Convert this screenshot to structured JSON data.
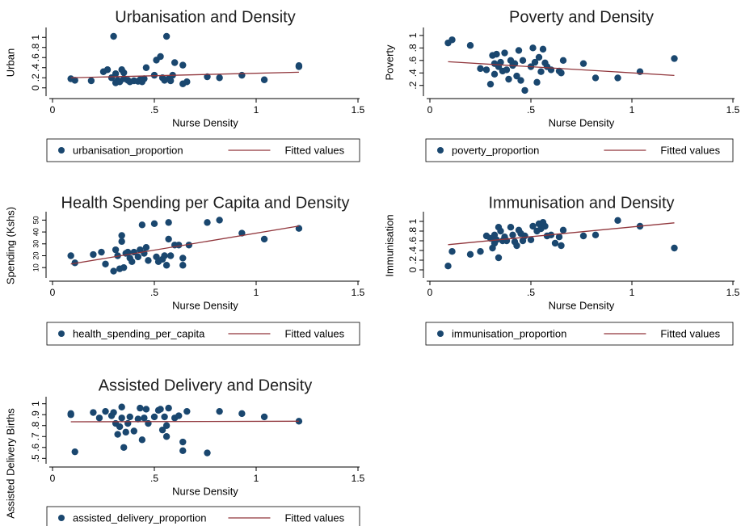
{
  "chart_data": [
    {
      "type": "scatter",
      "title": "Urbanisation and Density",
      "x_label": "Nurse Density",
      "y_label": "Urban",
      "xlim": [
        0,
        1.5
      ],
      "xticks": [
        0,
        {
          "value": 0.5,
          "label": ".5"
        },
        1,
        1.5
      ],
      "ylim": [
        -0.1,
        1.1
      ],
      "yticks": [
        0,
        {
          "value": 0.2,
          "label": ".2"
        },
        {
          "value": 0.4,
          "label": ".4"
        },
        {
          "value": 0.6,
          "label": ".6"
        },
        {
          "value": 0.8,
          "label": ".8"
        },
        1
      ],
      "series": [
        {
          "name": "urbanisation_proportion",
          "type": "scatter",
          "color": "#1a476f",
          "x": [
            0.09,
            0.11,
            0.19,
            0.25,
            0.27,
            0.29,
            0.3,
            0.31,
            0.31,
            0.32,
            0.33,
            0.34,
            0.35,
            0.35,
            0.37,
            0.38,
            0.4,
            0.42,
            0.43,
            0.44,
            0.45,
            0.46,
            0.5,
            0.51,
            0.53,
            0.54,
            0.55,
            0.56,
            0.57,
            0.58,
            0.59,
            0.6,
            0.64,
            0.64,
            0.66,
            0.76,
            0.82,
            0.93,
            1.04,
            1.21,
            1.21
          ],
          "values": [
            0.18,
            0.15,
            0.14,
            0.32,
            0.36,
            0.2,
            1.02,
            0.28,
            0.1,
            0.15,
            0.12,
            0.36,
            0.3,
            0.18,
            0.15,
            0.12,
            0.14,
            0.13,
            0.16,
            0.12,
            0.18,
            0.4,
            0.25,
            0.55,
            0.62,
            0.2,
            0.15,
            1.02,
            0.18,
            0.14,
            0.25,
            0.5,
            0.45,
            0.08,
            0.12,
            0.22,
            0.2,
            0.25,
            0.16,
            0.44,
            0.42
          ]
        },
        {
          "name": "Fitted values",
          "type": "line",
          "color": "#90353b",
          "x": [
            0.09,
            1.21
          ],
          "values": [
            0.2,
            0.31
          ]
        }
      ]
    },
    {
      "type": "scatter",
      "title": "Poverty and Density",
      "x_label": "Nurse Density",
      "y_label": "Poverty",
      "xlim": [
        0,
        1.5
      ],
      "xticks": [
        0,
        {
          "value": 0.5,
          "label": ".5"
        },
        1,
        1.5
      ],
      "ylim": [
        0.08,
        1.05
      ],
      "yticks": [
        {
          "value": 0.2,
          "label": ".2"
        },
        {
          "value": 0.4,
          "label": ".4"
        },
        {
          "value": 0.6,
          "label": ".6"
        },
        {
          "value": 0.8,
          "label": ".8"
        },
        1
      ],
      "series": [
        {
          "name": "poverty_proportion",
          "type": "scatter",
          "color": "#1a476f",
          "x": [
            0.09,
            0.11,
            0.2,
            0.25,
            0.28,
            0.3,
            0.31,
            0.32,
            0.32,
            0.33,
            0.34,
            0.35,
            0.36,
            0.37,
            0.38,
            0.39,
            0.4,
            0.41,
            0.42,
            0.43,
            0.44,
            0.45,
            0.46,
            0.47,
            0.5,
            0.51,
            0.52,
            0.53,
            0.54,
            0.55,
            0.56,
            0.57,
            0.58,
            0.6,
            0.64,
            0.65,
            0.66,
            0.76,
            0.82,
            0.93,
            1.04,
            1.21
          ],
          "values": [
            0.88,
            0.93,
            0.84,
            0.47,
            0.45,
            0.22,
            0.68,
            0.55,
            0.38,
            0.7,
            0.5,
            0.57,
            0.43,
            0.72,
            0.45,
            0.3,
            0.6,
            0.52,
            0.55,
            0.35,
            0.76,
            0.28,
            0.6,
            0.12,
            0.5,
            0.8,
            0.57,
            0.25,
            0.65,
            0.42,
            0.78,
            0.56,
            0.5,
            0.45,
            0.43,
            0.4,
            0.6,
            0.55,
            0.32,
            0.32,
            0.42,
            0.63
          ]
        },
        {
          "name": "Fitted values",
          "type": "line",
          "color": "#90353b",
          "x": [
            0.09,
            1.21
          ],
          "values": [
            0.58,
            0.36
          ]
        }
      ]
    },
    {
      "type": "scatter",
      "title": "Health Spending per Capita and Density",
      "x_label": "Nurse Density",
      "y_label": "Spending (Kshs)",
      "xlim": [
        0,
        1.5
      ],
      "xticks": [
        0,
        {
          "value": 0.5,
          "label": ".5"
        },
        1,
        1.5
      ],
      "ylim": [
        4,
        53
      ],
      "yticks": [
        10,
        20,
        30,
        40,
        50
      ],
      "series": [
        {
          "name": "health_spending_per_capita",
          "type": "scatter",
          "color": "#1a476f",
          "x": [
            0.09,
            0.11,
            0.2,
            0.24,
            0.26,
            0.3,
            0.31,
            0.32,
            0.33,
            0.34,
            0.34,
            0.35,
            0.36,
            0.37,
            0.38,
            0.39,
            0.4,
            0.42,
            0.43,
            0.44,
            0.45,
            0.46,
            0.47,
            0.5,
            0.51,
            0.52,
            0.54,
            0.55,
            0.56,
            0.57,
            0.57,
            0.58,
            0.6,
            0.62,
            0.64,
            0.64,
            0.67,
            0.76,
            0.82,
            0.93,
            1.04,
            1.21
          ],
          "values": [
            20,
            14,
            21,
            23,
            13,
            7,
            25,
            20,
            9,
            37,
            32,
            10,
            22,
            23,
            18,
            15,
            23,
            19,
            25,
            46,
            22,
            27,
            16,
            47,
            19,
            15,
            17,
            20,
            12,
            48,
            34,
            20,
            29,
            29,
            18,
            12,
            29,
            48,
            50,
            39,
            34,
            43
          ]
        },
        {
          "name": "Fitted values",
          "type": "line",
          "color": "#90353b",
          "x": [
            0.09,
            1.21
          ],
          "values": [
            13,
            45
          ]
        }
      ]
    },
    {
      "type": "scatter",
      "title": "Immunisation and Density",
      "x_label": "Nurse Density",
      "y_label": "Immunisation",
      "xlim": [
        0,
        1.5
      ],
      "xticks": [
        0,
        {
          "value": 0.5,
          "label": ".5"
        },
        1,
        1.5
      ],
      "ylim": [
        -0.1,
        1.1
      ],
      "yticks": [
        0,
        {
          "value": 0.2,
          "label": ".2"
        },
        {
          "value": 0.4,
          "label": ".4"
        },
        {
          "value": 0.6,
          "label": ".6"
        },
        {
          "value": 0.8,
          "label": ".8"
        },
        1
      ],
      "series": [
        {
          "name": "immunisation_proportion",
          "type": "scatter",
          "color": "#1a476f",
          "x": [
            0.09,
            0.11,
            0.2,
            0.25,
            0.28,
            0.3,
            0.31,
            0.32,
            0.32,
            0.33,
            0.34,
            0.34,
            0.35,
            0.36,
            0.37,
            0.38,
            0.4,
            0.41,
            0.42,
            0.43,
            0.44,
            0.45,
            0.46,
            0.47,
            0.5,
            0.51,
            0.53,
            0.54,
            0.55,
            0.56,
            0.57,
            0.58,
            0.6,
            0.62,
            0.64,
            0.65,
            0.66,
            0.76,
            0.82,
            0.93,
            1.04,
            1.21
          ],
          "values": [
            0.08,
            0.38,
            0.32,
            0.38,
            0.7,
            0.65,
            0.45,
            0.55,
            0.72,
            0.62,
            0.88,
            0.25,
            0.8,
            0.6,
            0.68,
            0.6,
            0.88,
            0.72,
            0.58,
            0.5,
            0.82,
            0.75,
            0.6,
            0.7,
            0.62,
            0.9,
            0.8,
            0.95,
            0.85,
            0.98,
            0.9,
            0.7,
            0.72,
            0.55,
            0.68,
            0.5,
            0.82,
            0.7,
            0.72,
            1.02,
            0.9,
            0.45
          ]
        },
        {
          "name": "Fitted values",
          "type": "line",
          "color": "#90353b",
          "x": [
            0.09,
            1.21
          ],
          "values": [
            0.52,
            0.97
          ]
        }
      ]
    },
    {
      "type": "scatter",
      "title": "Assisted Delivery and Density",
      "x_label": "Nurse Density",
      "y_label": "Assisted Delivery Births",
      "xlim": [
        0,
        1.5
      ],
      "xticks": [
        0,
        {
          "value": 0.5,
          "label": ".5"
        },
        1,
        1.5
      ],
      "ylim": [
        0.48,
        1.02
      ],
      "yticks": [
        {
          "value": 0.5,
          "label": ".5"
        },
        {
          "value": 0.6,
          "label": ".6"
        },
        {
          "value": 0.7,
          "label": ".7"
        },
        {
          "value": 0.8,
          "label": ".8"
        },
        {
          "value": 0.9,
          "label": ".9"
        },
        1
      ],
      "series": [
        {
          "name": "assisted_delivery_proportion",
          "type": "scatter",
          "color": "#1a476f",
          "x": [
            0.09,
            0.09,
            0.11,
            0.2,
            0.23,
            0.26,
            0.29,
            0.3,
            0.31,
            0.32,
            0.33,
            0.34,
            0.34,
            0.35,
            0.36,
            0.37,
            0.38,
            0.4,
            0.42,
            0.43,
            0.44,
            0.45,
            0.46,
            0.47,
            0.5,
            0.52,
            0.53,
            0.54,
            0.55,
            0.56,
            0.56,
            0.57,
            0.6,
            0.62,
            0.64,
            0.64,
            0.66,
            0.76,
            0.82,
            0.93,
            1.04,
            1.21
          ],
          "values": [
            0.9,
            0.91,
            0.56,
            0.92,
            0.87,
            0.93,
            0.89,
            0.92,
            0.82,
            0.72,
            0.79,
            0.87,
            0.97,
            0.6,
            0.74,
            0.82,
            0.88,
            0.75,
            0.86,
            0.96,
            0.67,
            0.87,
            0.95,
            0.82,
            0.88,
            0.94,
            0.95,
            0.76,
            0.88,
            0.8,
            0.7,
            0.96,
            0.87,
            0.89,
            0.65,
            0.57,
            0.93,
            0.55,
            0.93,
            0.91,
            0.88,
            0.84
          ]
        },
        {
          "name": "Fitted values",
          "type": "line",
          "color": "#90353b",
          "x": [
            0.09,
            1.21
          ],
          "values": [
            0.835,
            0.84
          ]
        }
      ]
    }
  ]
}
